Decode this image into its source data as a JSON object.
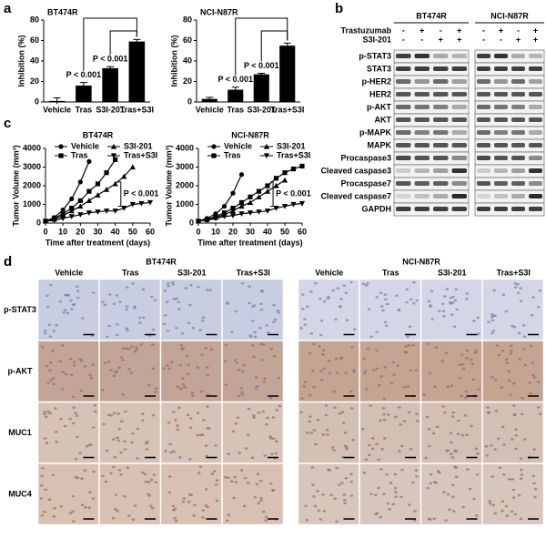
{
  "panel_labels": [
    "a",
    "b",
    "c",
    "d"
  ],
  "chart_data": [
    {
      "type": "bar",
      "title": "BT474R",
      "ylabel": "Inhibition (%)",
      "categories": [
        "Vehicle",
        "Tras",
        "S3I-201",
        "Tras+S3I"
      ],
      "values": [
        1,
        16,
        33,
        59
      ],
      "errors": [
        3,
        3,
        1.5,
        2
      ],
      "color": "#000000",
      "ylim": [
        0,
        80
      ],
      "yticks": [
        0,
        20,
        40,
        60,
        80
      ],
      "annotations": [
        "P < 0.001",
        "P < 0.001"
      ]
    },
    {
      "type": "bar",
      "title": "NCI-N87R",
      "ylabel": "Inhibition (%)",
      "categories": [
        "Vehicle",
        "Tras",
        "S3I-201",
        "Tras+S3I"
      ],
      "values": [
        3,
        12,
        27,
        55
      ],
      "errors": [
        1.5,
        2.5,
        1,
        2.5
      ],
      "color": "#000000",
      "ylim": [
        0,
        80
      ],
      "yticks": [
        0,
        20,
        40,
        60,
        80
      ],
      "annotations": [
        "P < 0.001",
        "P < 0.001"
      ]
    },
    {
      "type": "line",
      "title": "BT474R",
      "xlabel": "Time after treatment (days)",
      "ylabel": "Tumor Volume (mm³)",
      "x": [
        0,
        5,
        10,
        15,
        20,
        25,
        30,
        35,
        40,
        45,
        50,
        55,
        60
      ],
      "xlim": [
        0,
        60
      ],
      "xticks": [
        0,
        10,
        20,
        30,
        40,
        50,
        60
      ],
      "ylim": [
        0,
        4000
      ],
      "yticks": [
        0,
        1000,
        2000,
        3000,
        4000
      ],
      "annotation": "P < 0.001",
      "series": [
        {
          "name": "Vehicle",
          "color": "#000000",
          "marker": "circle",
          "values": [
            100,
            300,
            700,
            1300,
            2200,
            3300,
            null,
            null,
            null,
            null,
            null,
            null,
            null
          ]
        },
        {
          "name": "S3I-201",
          "color": "#000000",
          "marker": "triangle-up",
          "values": [
            100,
            200,
            400,
            650,
            900,
            1200,
            1500,
            1800,
            2100,
            2500,
            3000,
            null,
            null
          ]
        },
        {
          "name": "Tras",
          "color": "#000000",
          "marker": "square",
          "values": [
            100,
            250,
            500,
            800,
            1200,
            1700,
            2100,
            2700,
            3400,
            null,
            null,
            null,
            null
          ]
        },
        {
          "name": "Tras+S3I",
          "color": "#000000",
          "marker": "triangle-down",
          "values": [
            100,
            150,
            250,
            350,
            450,
            550,
            600,
            650,
            650,
            800,
            1000,
            1050,
            1100
          ]
        }
      ]
    },
    {
      "type": "line",
      "title": "NCI-N87R",
      "xlabel": "Time after treatment (days)",
      "ylabel": "Tumor Volume (mm³)",
      "x": [
        0,
        5,
        10,
        15,
        20,
        25,
        30,
        35,
        40,
        45,
        50,
        55,
        60
      ],
      "xlim": [
        0,
        60
      ],
      "xticks": [
        0,
        10,
        20,
        30,
        40,
        50,
        60
      ],
      "ylim": [
        0,
        4000
      ],
      "yticks": [
        0,
        1000,
        2000,
        3000,
        4000
      ],
      "annotation": "P < 0.001",
      "series": [
        {
          "name": "Vehicle",
          "color": "#000000",
          "marker": "circle",
          "values": [
            100,
            250,
            500,
            900,
            1600,
            2600,
            null,
            null,
            null,
            null,
            null,
            null,
            null
          ]
        },
        {
          "name": "S3I-201",
          "color": "#000000",
          "marker": "triangle-up",
          "values": [
            100,
            180,
            300,
            450,
            650,
            900,
            1100,
            1400,
            1700,
            2000,
            2300,
            null,
            null
          ]
        },
        {
          "name": "Tras",
          "color": "#000000",
          "marker": "square",
          "values": [
            100,
            200,
            350,
            550,
            800,
            1100,
            1400,
            1700,
            2000,
            2400,
            2700,
            2900,
            3050
          ]
        },
        {
          "name": "Tras+S3I",
          "color": "#000000",
          "marker": "triangle-down",
          "values": [
            100,
            150,
            250,
            350,
            400,
            500,
            550,
            600,
            650,
            800,
            900,
            1000,
            1050
          ]
        }
      ]
    }
  ],
  "blot": {
    "groups": [
      "BT474R",
      "NCI-N87R"
    ],
    "treatments": [
      {
        "label": "Trastuzumab",
        "signs": [
          "-",
          "+",
          "-",
          "+"
        ]
      },
      {
        "label": "S3I-201",
        "signs": [
          "-",
          "-",
          "+",
          "+"
        ]
      }
    ],
    "rows": [
      "p-STAT3",
      "STAT3",
      "p-HER2",
      "HER2",
      "p-AKT",
      "AKT",
      "p-MAPK",
      "MAPK",
      "Procaspase3",
      "Cleaved caspase3",
      "Procaspase7",
      "Cleaved caspase7",
      "GAPDH"
    ]
  },
  "ihc": {
    "groups": [
      "BT474R",
      "NCI-N87R"
    ],
    "columns": [
      "Vehicle",
      "Tras",
      "S3I-201",
      "Tras+S3I"
    ],
    "rows": [
      "p-STAT3",
      "p-AKT",
      "MUC1",
      "MUC4"
    ]
  }
}
